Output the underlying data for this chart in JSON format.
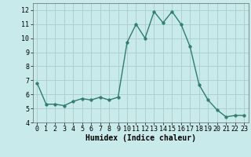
{
  "x": [
    0,
    1,
    2,
    3,
    4,
    5,
    6,
    7,
    8,
    9,
    10,
    11,
    12,
    13,
    14,
    15,
    16,
    17,
    18,
    19,
    20,
    21,
    22,
    23
  ],
  "y": [
    6.8,
    5.3,
    5.3,
    5.2,
    5.5,
    5.7,
    5.6,
    5.8,
    5.6,
    5.8,
    9.7,
    11.0,
    10.0,
    11.9,
    11.1,
    11.9,
    11.0,
    9.4,
    6.7,
    5.6,
    4.9,
    4.4,
    4.5,
    4.5
  ],
  "bg_color": "#c8eaea",
  "line_color": "#2e7d6e",
  "marker_color": "#2e7d6e",
  "grid_color": "#aacccc",
  "xlabel": "Humidex (Indice chaleur)",
  "ylim": [
    4,
    12.5
  ],
  "xlim": [
    -0.5,
    23.5
  ],
  "yticks": [
    4,
    5,
    6,
    7,
    8,
    9,
    10,
    11,
    12
  ],
  "xticks": [
    0,
    1,
    2,
    3,
    4,
    5,
    6,
    7,
    8,
    9,
    10,
    11,
    12,
    13,
    14,
    15,
    16,
    17,
    18,
    19,
    20,
    21,
    22,
    23
  ],
  "xlabel_fontsize": 7,
  "tick_fontsize": 6,
  "line_width": 1.0,
  "marker_size": 2.5
}
